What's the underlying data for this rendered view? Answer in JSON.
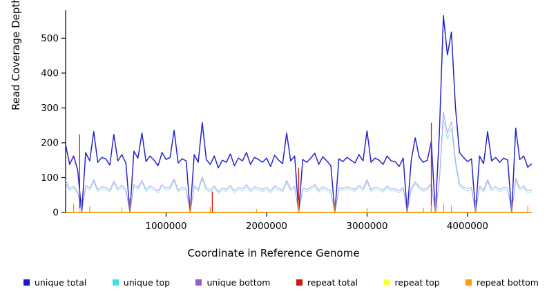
{
  "chart_data": {
    "type": "line",
    "title": "",
    "xlabel": "Coordinate in Reference Genome",
    "ylabel": "Read Coverage Depth",
    "xlim": [
      0,
      4640000
    ],
    "ylim": [
      0,
      580
    ],
    "x_step": 40000,
    "x_ticks": [
      1000000,
      2000000,
      3000000,
      4000000
    ],
    "x_tick_labels": [
      "1000000",
      "2000000",
      "3000000",
      "4000000"
    ],
    "y_ticks": [
      0,
      100,
      200,
      300,
      400,
      500
    ],
    "y_tick_labels": [
      "0",
      "100",
      "200",
      "300",
      "400",
      "500"
    ],
    "grid": false,
    "legend_position": "bottom",
    "series": [
      {
        "name": "unique top",
        "color": "#8ceaea",
        "width": 1,
        "values": [
          85,
          62,
          70,
          55,
          0,
          72,
          64,
          88,
          60,
          68,
          66,
          58,
          84,
          62,
          72,
          60,
          0,
          74,
          66,
          86,
          60,
          70,
          64,
          56,
          74,
          64,
          68,
          90,
          58,
          66,
          62,
          0,
          72,
          60,
          96,
          64,
          58,
          70,
          54,
          64,
          60,
          72,
          56,
          66,
          62,
          74,
          58,
          68,
          64,
          60,
          66,
          56,
          70,
          64,
          58,
          86,
          62,
          70,
          0,
          64,
          60,
          66,
          74,
          58,
          68,
          62,
          56,
          0,
          66,
          62,
          68,
          64,
          60,
          72,
          62,
          88,
          60,
          66,
          64,
          58,
          70,
          62,
          62,
          56,
          66,
          0,
          64,
          82,
          68,
          60,
          64,
          78,
          0,
          86,
          268,
          210,
          242,
          140,
          76,
          66,
          62,
          66,
          0,
          70,
          58,
          88,
          62,
          68,
          60,
          66,
          64,
          0,
          92,
          64,
          70,
          56,
          60
        ]
      },
      {
        "name": "unique bottom",
        "color": "#bb9af0",
        "width": 1,
        "values": [
          92,
          68,
          76,
          60,
          0,
          78,
          70,
          94,
          66,
          74,
          72,
          64,
          90,
          68,
          78,
          66,
          0,
          80,
          72,
          92,
          66,
          76,
          70,
          62,
          80,
          70,
          74,
          96,
          64,
          72,
          68,
          0,
          78,
          66,
          102,
          70,
          64,
          76,
          60,
          70,
          66,
          78,
          62,
          72,
          68,
          80,
          64,
          74,
          70,
          66,
          72,
          62,
          76,
          70,
          64,
          92,
          68,
          76,
          0,
          70,
          66,
          72,
          80,
          64,
          74,
          68,
          62,
          0,
          72,
          68,
          74,
          70,
          66,
          78,
          68,
          94,
          66,
          72,
          70,
          64,
          76,
          68,
          68,
          62,
          72,
          0,
          70,
          88,
          74,
          66,
          70,
          84,
          0,
          92,
          288,
          228,
          260,
          150,
          82,
          72,
          68,
          72,
          0,
          76,
          64,
          94,
          68,
          74,
          66,
          72,
          70,
          0,
          98,
          70,
          76,
          62,
          66
        ]
      },
      {
        "name": "unique total",
        "color": "#2323cc",
        "width": 1.5,
        "values": [
          195,
          138,
          162,
          122,
          0,
          172,
          148,
          232,
          144,
          158,
          154,
          136,
          224,
          148,
          166,
          142,
          0,
          176,
          156,
          228,
          146,
          162,
          150,
          134,
          172,
          152,
          158,
          236,
          142,
          154,
          148,
          0,
          166,
          144,
          258,
          152,
          138,
          162,
          128,
          150,
          144,
          168,
          134,
          156,
          148,
          172,
          138,
          158,
          152,
          144,
          156,
          132,
          164,
          150,
          140,
          228,
          148,
          162,
          0,
          152,
          144,
          156,
          170,
          138,
          160,
          148,
          134,
          0,
          154,
          146,
          158,
          150,
          142,
          166,
          148,
          234,
          144,
          156,
          150,
          138,
          162,
          148,
          146,
          132,
          156,
          0,
          150,
          214,
          158,
          144,
          150,
          204,
          0,
          228,
          565,
          452,
          518,
          302,
          172,
          158,
          146,
          154,
          0,
          162,
          140,
          232,
          148,
          158,
          144,
          156,
          150,
          0,
          242,
          152,
          162,
          130,
          140
        ]
      }
    ],
    "spike_series": [
      {
        "name": "repeat total",
        "color": "#dd1111",
        "width": 1.3,
        "spikes": [
          [
            140000,
            224
          ],
          [
            1460000,
            60
          ],
          [
            2320000,
            128
          ],
          [
            3640000,
            258
          ]
        ]
      },
      {
        "name": "repeat top",
        "color": "#ffff00",
        "width": 1.2,
        "spikes": [
          [
            140000,
            12
          ],
          [
            2320000,
            8
          ],
          [
            3700000,
            22
          ]
        ]
      },
      {
        "name": "repeat bottom",
        "color": "#ff9900",
        "width": 1.3,
        "spikes": [
          [
            80000,
            26
          ],
          [
            160000,
            38
          ],
          [
            240000,
            18
          ],
          [
            560000,
            14
          ],
          [
            640000,
            42
          ],
          [
            1240000,
            32
          ],
          [
            1440000,
            16
          ],
          [
            1900000,
            10
          ],
          [
            2320000,
            36
          ],
          [
            2680000,
            26
          ],
          [
            3000000,
            12
          ],
          [
            3400000,
            30
          ],
          [
            3560000,
            14
          ],
          [
            3640000,
            22
          ],
          [
            3680000,
            40
          ],
          [
            3760000,
            26
          ],
          [
            3840000,
            20
          ],
          [
            4080000,
            36
          ],
          [
            4440000,
            30
          ],
          [
            4600000,
            18
          ]
        ]
      }
    ],
    "legend": [
      {
        "label": "unique total",
        "color": "#1a1ac8"
      },
      {
        "label": "unique top",
        "color": "#40e0e0"
      },
      {
        "label": "unique bottom",
        "color": "#9b59d0"
      },
      {
        "label": "repeat total",
        "color": "#dd1111"
      },
      {
        "label": "repeat top",
        "color": "#ffff33"
      },
      {
        "label": "repeat bottom",
        "color": "#ff9d00"
      }
    ]
  }
}
